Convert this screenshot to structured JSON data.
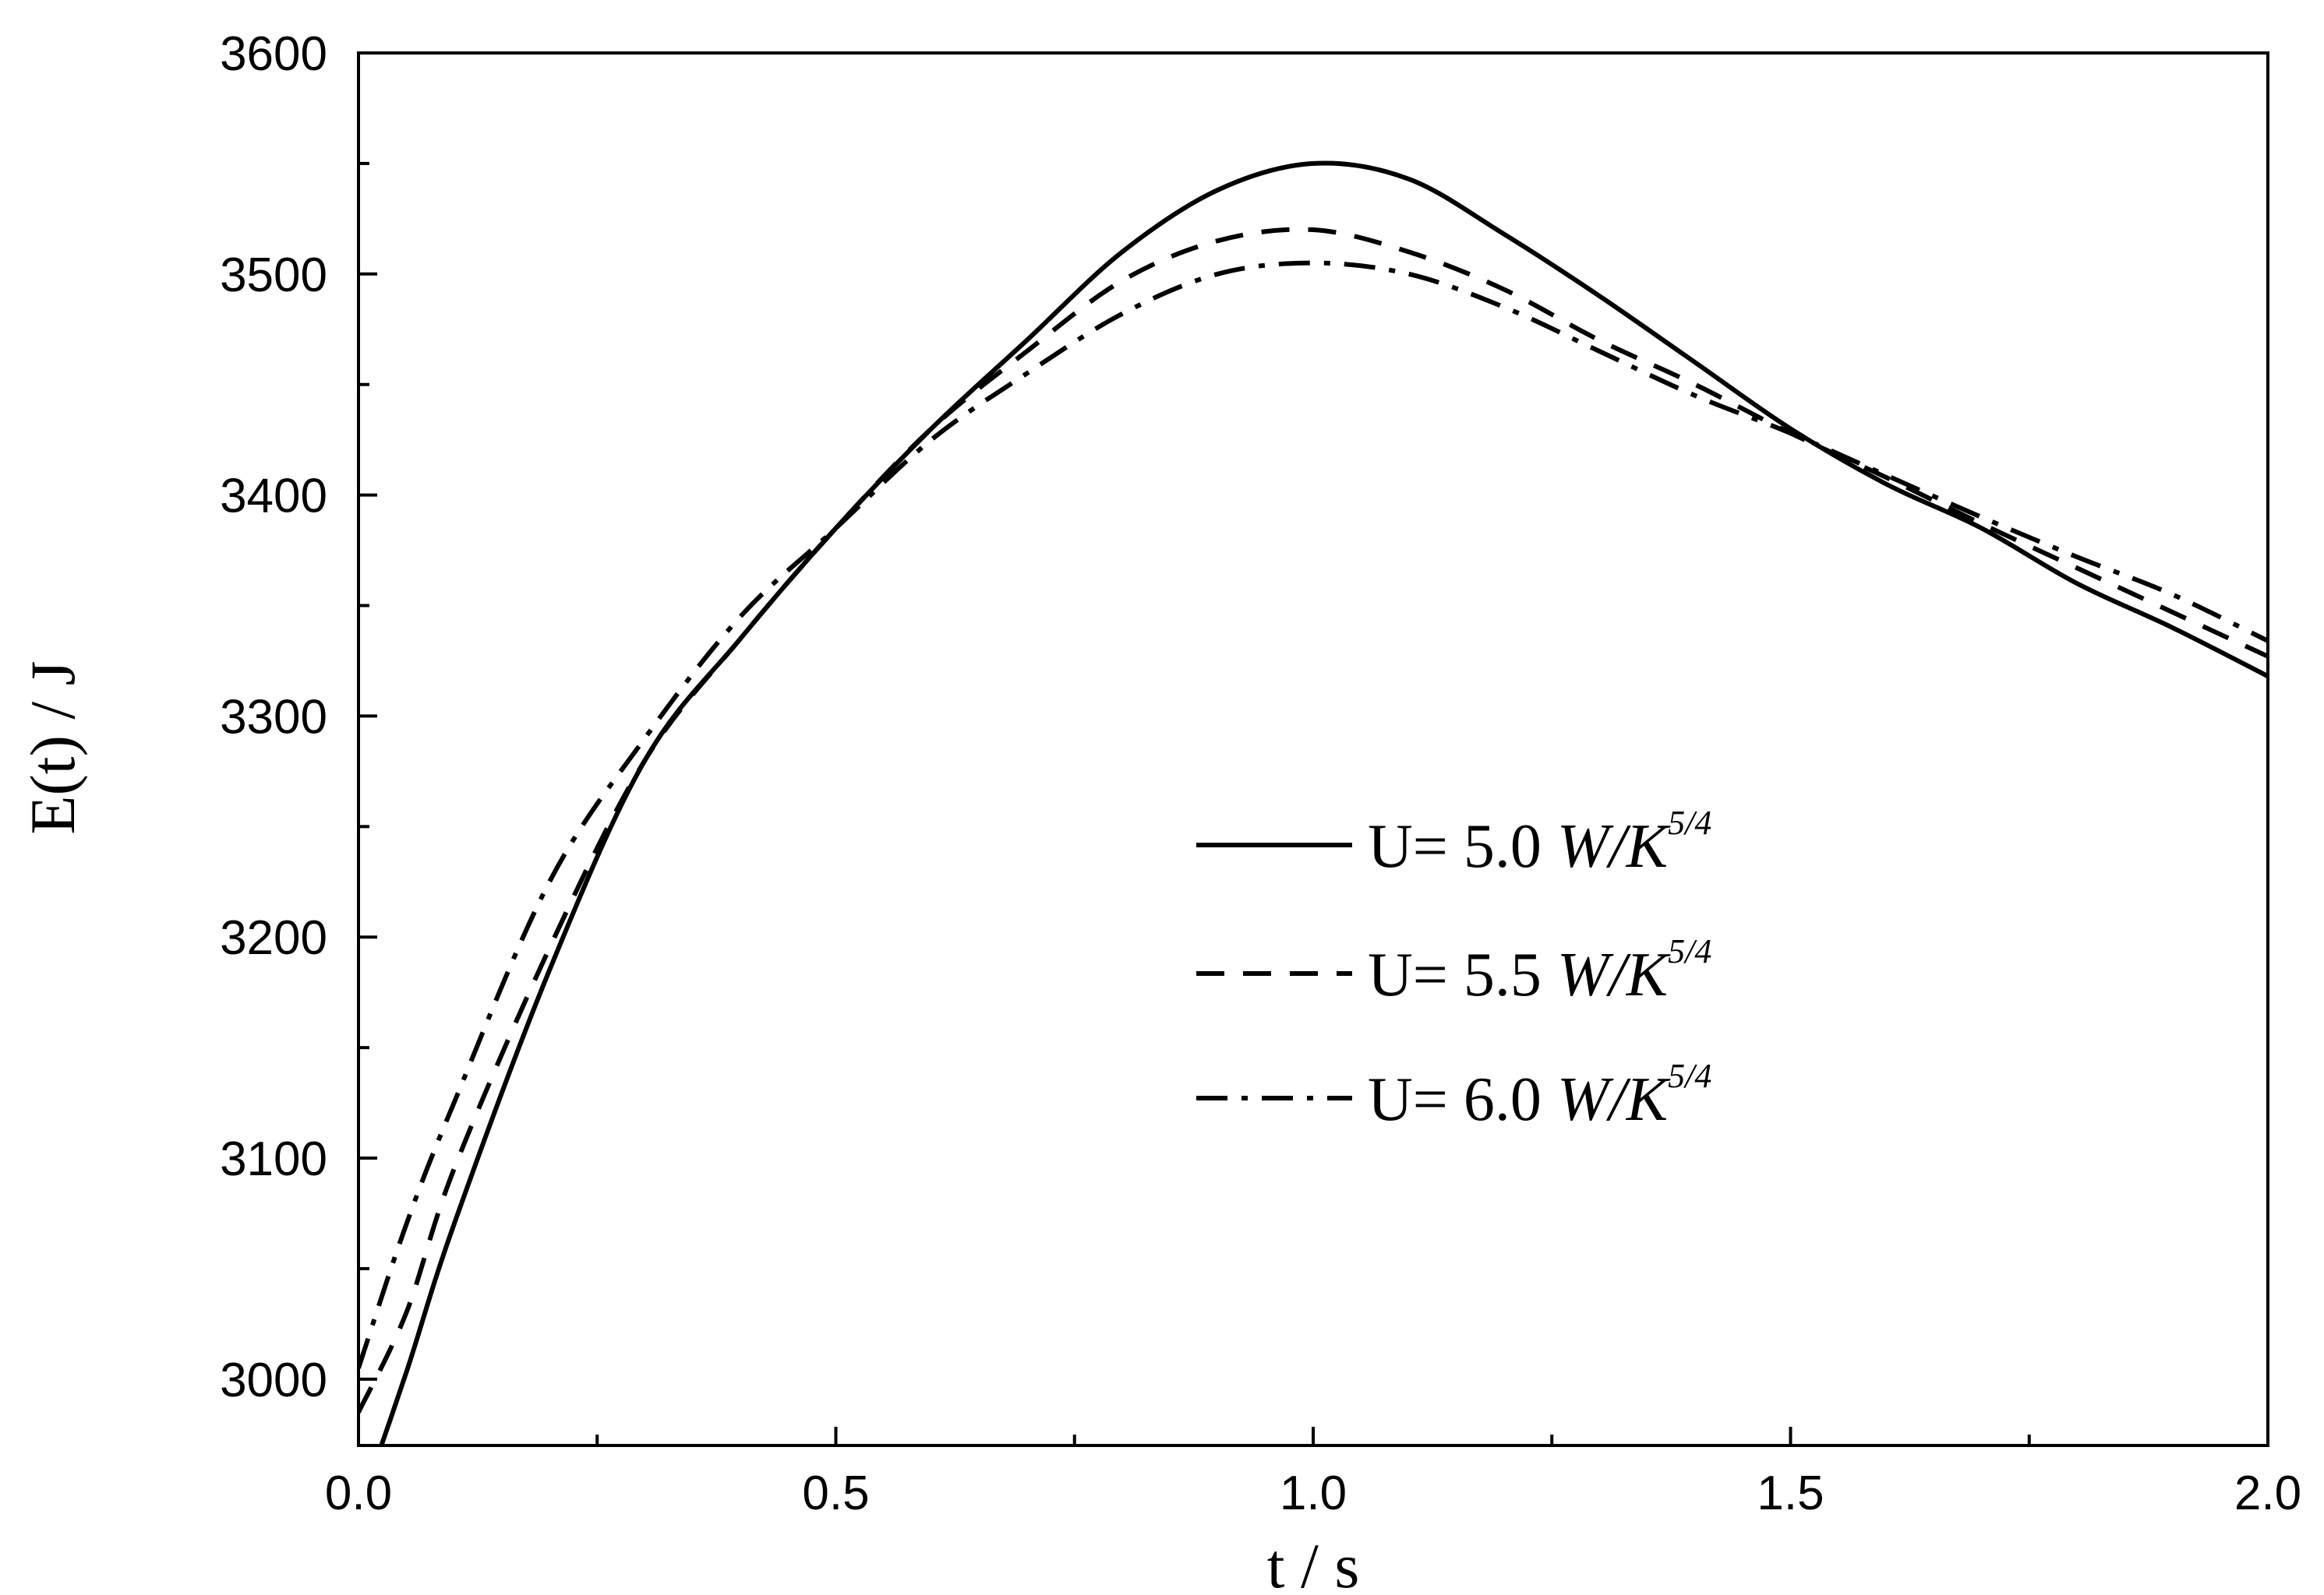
{
  "chart_data": {
    "type": "line",
    "title": "",
    "xlabel": "t / s",
    "ylabel": "E(t) / J",
    "xlim": [
      0.0,
      2.0
    ],
    "ylim": [
      2970,
      3600
    ],
    "x_ticks": [
      "0.0",
      "0.5",
      "1.0",
      "1.5",
      "2.0"
    ],
    "y_ticks": [
      "3000",
      "3100",
      "3200",
      "3300",
      "3400",
      "3500",
      "3600"
    ],
    "grid": false,
    "legend_position": "center-right",
    "series": [
      {
        "name": "U= 5.0 W/K^5/4",
        "label_text": "U= 5.0 ",
        "label_unit": "W/K",
        "label_sup": "5/4",
        "line_style": "solid",
        "color": "#000000",
        "x": [
          0.0,
          0.05,
          0.1,
          0.2,
          0.3,
          0.4,
          0.5,
          0.6,
          0.7,
          0.8,
          0.9,
          1.0,
          1.1,
          1.2,
          1.3,
          1.4,
          1.5,
          1.6,
          1.7,
          1.8,
          1.9,
          2.0
        ],
        "y": [
          2940,
          3003,
          3070,
          3185,
          3280,
          3335,
          3385,
          3430,
          3470,
          3510,
          3538,
          3550,
          3543,
          3518,
          3490,
          3460,
          3430,
          3405,
          3385,
          3360,
          3340,
          3318
        ]
      },
      {
        "name": "U= 5.5 W/K^5/4",
        "label_text": "U= 5.5 ",
        "label_unit": "W/K",
        "label_sup": "5/4",
        "line_style": "dashed",
        "color": "#000000",
        "x": [
          0.0,
          0.05,
          0.1,
          0.2,
          0.3,
          0.4,
          0.5,
          0.6,
          0.7,
          0.8,
          0.9,
          1.0,
          1.1,
          1.2,
          1.3,
          1.4,
          1.5,
          1.6,
          1.7,
          1.8,
          1.9,
          2.0
        ],
        "y": [
          2985,
          3030,
          3095,
          3195,
          3280,
          3335,
          3385,
          3430,
          3465,
          3497,
          3515,
          3520,
          3510,
          3493,
          3470,
          3450,
          3428,
          3408,
          3387,
          3367,
          3347,
          3327
        ]
      },
      {
        "name": "U= 6.0 W/K^5/4",
        "label_text": "U= 6.0 ",
        "label_unit": "W/K",
        "label_sup": "5/4",
        "line_style": "dash-dot",
        "color": "#000000",
        "x": [
          0.0,
          0.05,
          0.1,
          0.2,
          0.3,
          0.4,
          0.5,
          0.6,
          0.7,
          0.8,
          0.9,
          1.0,
          1.1,
          1.2,
          1.3,
          1.4,
          1.5,
          1.6,
          1.7,
          1.8,
          1.9,
          2.0
        ],
        "y": [
          3005,
          3070,
          3125,
          3225,
          3290,
          3345,
          3385,
          3425,
          3455,
          3482,
          3500,
          3505,
          3500,
          3485,
          3465,
          3445,
          3428,
          3409,
          3390,
          3372,
          3355,
          3334
        ]
      }
    ]
  }
}
